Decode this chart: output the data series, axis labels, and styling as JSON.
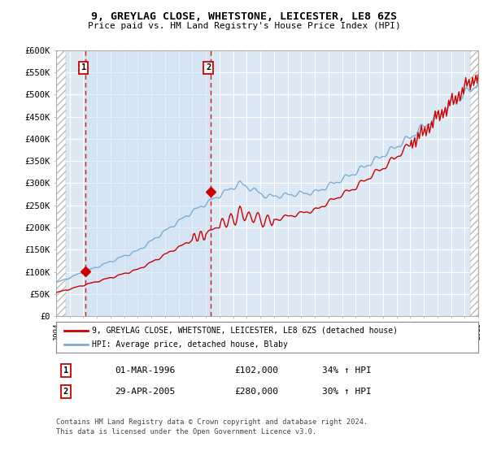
{
  "title1": "9, GREYLAG CLOSE, WHETSTONE, LEICESTER, LE8 6ZS",
  "title2": "Price paid vs. HM Land Registry's House Price Index (HPI)",
  "ylim": [
    0,
    600000
  ],
  "yticks": [
    0,
    50000,
    100000,
    150000,
    200000,
    250000,
    300000,
    350000,
    400000,
    450000,
    500000,
    550000,
    600000
  ],
  "ytick_labels": [
    "£0",
    "£50K",
    "£100K",
    "£150K",
    "£200K",
    "£250K",
    "£300K",
    "£350K",
    "£400K",
    "£450K",
    "£500K",
    "£550K",
    "£600K"
  ],
  "sale1_date_num": 1996.16,
  "sale1_price": 102000,
  "sale2_date_num": 2005.32,
  "sale2_price": 280000,
  "chart_bg": "#dce9f5",
  "legend_label_red": "9, GREYLAG CLOSE, WHETSTONE, LEICESTER, LE8 6ZS (detached house)",
  "legend_label_blue": "HPI: Average price, detached house, Blaby",
  "table_row1": [
    "1",
    "01-MAR-1996",
    "£102,000",
    "34% ↑ HPI"
  ],
  "table_row2": [
    "2",
    "29-APR-2005",
    "£280,000",
    "30% ↑ HPI"
  ],
  "footnote1": "Contains HM Land Registry data © Crown copyright and database right 2024.",
  "footnote2": "This data is licensed under the Open Government Licence v3.0.",
  "red_line_color": "#cc0000",
  "blue_line_color": "#7aaed6",
  "dot_color": "#cc0000",
  "hatch_bg": "#f0f0f0",
  "grid_color": "#ffffff",
  "sale_bg_color": "#cfe0f0"
}
